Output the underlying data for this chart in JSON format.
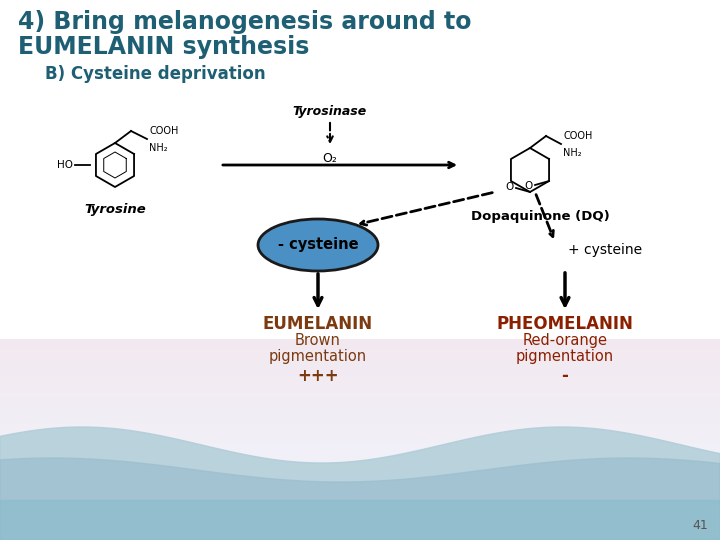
{
  "title_line1": "4) Bring melanogenesis around to",
  "title_line2": "EUMELANIN synthesis",
  "subtitle": "B) Cysteine deprivation",
  "title_color": "#1E5F74",
  "subtitle_color": "#1E5F74",
  "tyrosine_label": "Tyrosine",
  "dopaquinone_label": "Dopaquinone (DQ)",
  "tyrosinase_label": "Tyrosinase",
  "o2_label": "O₂",
  "minus_cysteine_label": "- cysteine",
  "plus_cysteine_label": "+ cysteine",
  "eumelanin_label": "EUMELANIN",
  "eumelanin_sub1": "Brown",
  "eumelanin_sub2": "pigmentation",
  "eumelanin_sub3": "+++",
  "pheomelanin_label": "PHEOMELANIN",
  "pheomelanin_sub1": "Red-orange",
  "pheomelanin_sub2": "pigmentation",
  "pheomelanin_sub3": "-",
  "eumelanin_color": "#7B3A10",
  "pheomelanin_color": "#8B2000",
  "eumelanin_sub_color": "#7B3A10",
  "ellipse_fill": "#4A90C4",
  "ellipse_edge": "#1A1A1A",
  "page_number": "41",
  "bg_wave_color1": "#B8D4E0",
  "bg_wave_color2": "#A0C4D4"
}
